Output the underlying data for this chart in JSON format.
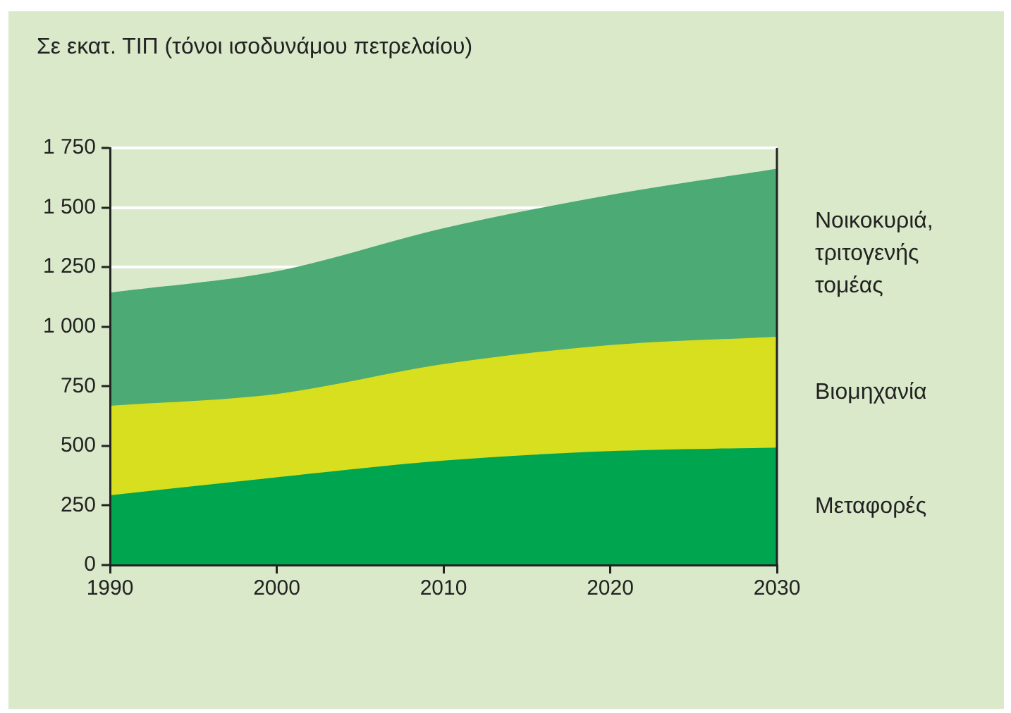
{
  "chart_data": {
    "type": "area",
    "ylabel": "Σε εκατ. ΤΙΠ (τόνοι ισοδυνάμου πετρελαίου)",
    "x": [
      1990,
      2000,
      2010,
      2020,
      2030
    ],
    "stacked": true,
    "series": [
      {
        "name": "Μεταφορές",
        "color": "#00a550",
        "values": [
          290,
          365,
          435,
          475,
          490
        ]
      },
      {
        "name": "Βιομηχανία",
        "color": "#d7df1e",
        "values": [
          375,
          350,
          405,
          445,
          465
        ]
      },
      {
        "name": "Νοικοκυριά, τριτογενής τομέας",
        "color": "#4caa74",
        "values": [
          475,
          515,
          570,
          630,
          705
        ]
      }
    ],
    "xlim": [
      1990,
      2030
    ],
    "xticks": [
      1990,
      2000,
      2010,
      2020,
      2030
    ],
    "ylim": [
      0,
      1750
    ],
    "yticks": [
      0,
      250,
      500,
      750,
      {
        "value": 1000,
        "label": "1 000"
      },
      {
        "value": 1250,
        "label": "1 250"
      },
      {
        "value": 1500,
        "label": "1 500"
      },
      {
        "value": 1750,
        "label": "1 750"
      }
    ],
    "grid": "y",
    "legend": false
  }
}
